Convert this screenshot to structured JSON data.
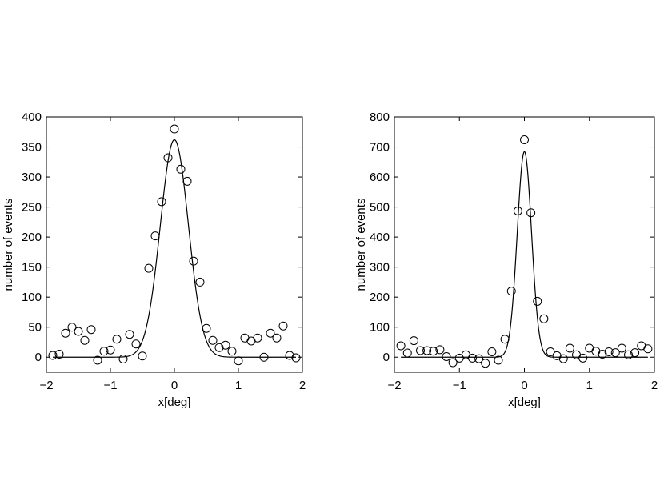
{
  "chart_data": [
    {
      "type": "scatter",
      "xlabel": "x[deg]",
      "ylabel": "number of events",
      "xlim": [
        -2,
        2
      ],
      "ylim": [
        -25,
        400
      ],
      "xticks": [
        -2,
        -1,
        0,
        1,
        2
      ],
      "xtick_labels": [
        "−2",
        "−1",
        "0",
        "1",
        "2"
      ],
      "yticks": [
        0,
        50,
        100,
        150,
        200,
        250,
        300,
        350,
        400
      ],
      "ytick_labels": [
        "0",
        "50",
        "100",
        "150",
        "200",
        "250",
        "300",
        "350",
        "400"
      ],
      "grid": false,
      "points": [
        [
          -1.9,
          3
        ],
        [
          -1.8,
          5
        ],
        [
          -1.7,
          40
        ],
        [
          -1.6,
          50
        ],
        [
          -1.5,
          43
        ],
        [
          -1.4,
          28
        ],
        [
          -1.3,
          46
        ],
        [
          -1.2,
          -5
        ],
        [
          -1.1,
          10
        ],
        [
          -1.0,
          12
        ],
        [
          -0.9,
          30
        ],
        [
          -0.8,
          -3
        ],
        [
          -0.7,
          38
        ],
        [
          -0.6,
          22
        ],
        [
          -0.5,
          2
        ],
        [
          -0.4,
          148
        ],
        [
          -0.3,
          202
        ],
        [
          -0.2,
          259
        ],
        [
          -0.1,
          332
        ],
        [
          0.0,
          380
        ],
        [
          0.1,
          313
        ],
        [
          0.2,
          293
        ],
        [
          0.3,
          160
        ],
        [
          0.4,
          125
        ],
        [
          0.5,
          48
        ],
        [
          0.6,
          28
        ],
        [
          0.7,
          16
        ],
        [
          0.8,
          20
        ],
        [
          0.9,
          10
        ],
        [
          1.0,
          -6
        ],
        [
          1.1,
          32
        ],
        [
          1.2,
          27
        ],
        [
          1.3,
          32
        ],
        [
          1.4,
          0
        ],
        [
          1.5,
          40
        ],
        [
          1.6,
          32
        ],
        [
          1.7,
          52
        ],
        [
          1.8,
          3
        ],
        [
          1.9,
          -1
        ]
      ],
      "fit": {
        "form": "gaussian",
        "amplitude": 362,
        "center": 0.0,
        "sigma": 0.22,
        "offset": 0,
        "x_range": [
          -1.9,
          1.9
        ]
      }
    },
    {
      "type": "scatter",
      "xlabel": "x[deg]",
      "ylabel": "number of events",
      "xlim": [
        -2,
        2
      ],
      "ylim": [
        -50,
        800
      ],
      "xticks": [
        -2,
        -1,
        0,
        1,
        2
      ],
      "xtick_labels": [
        "−2",
        "−1",
        "0",
        "1",
        "2"
      ],
      "yticks": [
        0,
        100,
        200,
        300,
        400,
        500,
        600,
        700,
        800
      ],
      "ytick_labels": [
        "0",
        "100",
        "200",
        "300",
        "400",
        "500",
        "600",
        "700",
        "800"
      ],
      "grid": false,
      "points": [
        [
          -1.9,
          38
        ],
        [
          -1.8,
          14
        ],
        [
          -1.7,
          55
        ],
        [
          -1.6,
          22
        ],
        [
          -1.5,
          22
        ],
        [
          -1.4,
          20
        ],
        [
          -1.3,
          25
        ],
        [
          -1.2,
          2
        ],
        [
          -1.1,
          -18
        ],
        [
          -1.0,
          -3
        ],
        [
          -0.9,
          8
        ],
        [
          -0.8,
          -3
        ],
        [
          -0.7,
          -5
        ],
        [
          -0.6,
          -20
        ],
        [
          -0.5,
          18
        ],
        [
          -0.4,
          -10
        ],
        [
          -0.3,
          60
        ],
        [
          -0.2,
          220
        ],
        [
          -0.1,
          487
        ],
        [
          0.0,
          724
        ],
        [
          0.1,
          481
        ],
        [
          0.2,
          186
        ],
        [
          0.3,
          128
        ],
        [
          0.4,
          18
        ],
        [
          0.5,
          5
        ],
        [
          0.6,
          -5
        ],
        [
          0.7,
          30
        ],
        [
          0.8,
          8
        ],
        [
          0.9,
          -3
        ],
        [
          1.0,
          30
        ],
        [
          1.1,
          20
        ],
        [
          1.2,
          10
        ],
        [
          1.3,
          18
        ],
        [
          1.4,
          15
        ],
        [
          1.5,
          30
        ],
        [
          1.6,
          8
        ],
        [
          1.7,
          15
        ],
        [
          1.8,
          38
        ],
        [
          1.9,
          28
        ]
      ],
      "fit": {
        "form": "gaussian",
        "amplitude": 685,
        "center": 0.0,
        "sigma": 0.11,
        "offset": 0,
        "x_range": [
          -1.9,
          1.9
        ]
      }
    }
  ]
}
